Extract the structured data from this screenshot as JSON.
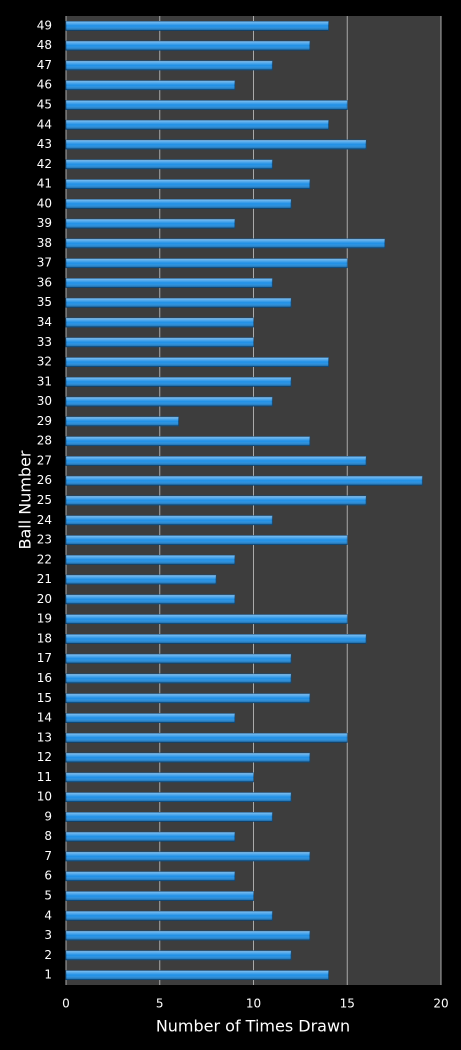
{
  "chart_data": {
    "type": "bar",
    "orientation": "horizontal",
    "xlabel": "Number of Times Drawn",
    "ylabel": "Ball Number",
    "categories": [
      "1",
      "2",
      "3",
      "4",
      "5",
      "6",
      "7",
      "8",
      "9",
      "10",
      "11",
      "12",
      "13",
      "14",
      "15",
      "16",
      "17",
      "18",
      "19",
      "20",
      "21",
      "22",
      "23",
      "24",
      "25",
      "26",
      "27",
      "28",
      "29",
      "30",
      "31",
      "32",
      "33",
      "34",
      "35",
      "36",
      "37",
      "38",
      "39",
      "40",
      "41",
      "42",
      "43",
      "44",
      "45",
      "46",
      "47",
      "48",
      "49"
    ],
    "values": [
      14,
      12,
      13,
      11,
      10,
      9,
      13,
      9,
      11,
      12,
      10,
      13,
      15,
      9,
      13,
      12,
      12,
      16,
      15,
      9,
      8,
      9,
      15,
      11,
      16,
      19,
      16,
      13,
      6,
      11,
      12,
      14,
      10,
      10,
      12,
      11,
      15,
      17,
      9,
      12,
      13,
      11,
      16,
      14,
      15,
      9,
      11,
      13,
      14
    ],
    "color": "#1e8fe6",
    "xlim": [
      0,
      20
    ],
    "xticks": [
      0,
      5,
      10,
      15,
      20
    ],
    "grid": true
  }
}
